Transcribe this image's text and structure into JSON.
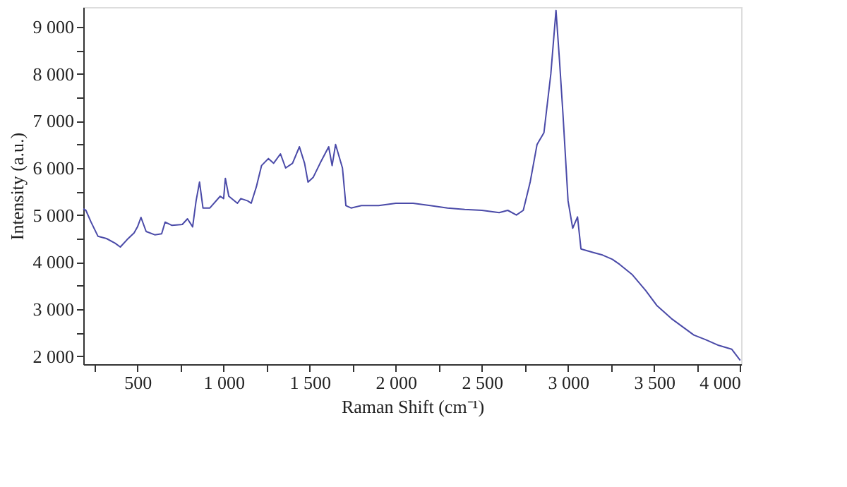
{
  "chart_data": {
    "type": "line",
    "xlabel": "Raman Shift (cm⁻¹)",
    "ylabel": "Intensity (a.u.)",
    "xlim": [
      185,
      4005
    ],
    "ylim": [
      1830,
      9420
    ],
    "xticks": [
      {
        "value": 250,
        "label": null
      },
      500,
      {
        "value": 750,
        "label": null
      },
      {
        "value": 1000,
        "label": "1 000"
      },
      {
        "value": 1250,
        "label": null
      },
      {
        "value": 1500,
        "label": "1 500"
      },
      {
        "value": 1750,
        "label": null
      },
      {
        "value": 2000,
        "label": "2 000"
      },
      {
        "value": 2250,
        "label": null
      },
      {
        "value": 2500,
        "label": "2 500"
      },
      {
        "value": 2750,
        "label": null
      },
      {
        "value": 3000,
        "label": "3 000"
      },
      {
        "value": 3250,
        "label": null
      },
      {
        "value": 3500,
        "label": "3 500"
      },
      {
        "value": 3750,
        "label": null
      },
      {
        "value": 4000,
        "label": "4 000"
      }
    ],
    "yticks": [
      {
        "value": 2000,
        "label": "2 000"
      },
      {
        "value": 2500,
        "label": null
      },
      {
        "value": 3000,
        "label": "3 000"
      },
      {
        "value": 3500,
        "label": null
      },
      {
        "value": 4000,
        "label": "4 000"
      },
      {
        "value": 4500,
        "label": null
      },
      {
        "value": 5000,
        "label": "5 000"
      },
      {
        "value": 5500,
        "label": null
      },
      {
        "value": 6000,
        "label": "6 000"
      },
      {
        "value": 6500,
        "label": null
      },
      {
        "value": 7000,
        "label": "7 000"
      },
      {
        "value": 7500,
        "label": null
      },
      {
        "value": 8000,
        "label": "8 000"
      },
      {
        "value": 8500,
        "label": null
      },
      {
        "value": 9000,
        "label": "9 000"
      }
    ],
    "grid": false,
    "marker": "none",
    "line_style": "solid",
    "series": [
      {
        "color": "#4a4aa8",
        "x": [
          185,
          200,
          230,
          270,
          320,
          370,
          400,
          440,
          480,
          500,
          520,
          550,
          600,
          640,
          660,
          700,
          760,
          790,
          820,
          840,
          860,
          880,
          920,
          980,
          1000,
          1010,
          1030,
          1080,
          1100,
          1140,
          1160,
          1190,
          1220,
          1260,
          1290,
          1330,
          1360,
          1400,
          1440,
          1470,
          1490,
          1520,
          1560,
          1610,
          1630,
          1650,
          1690,
          1710,
          1740,
          1800,
          1900,
          2000,
          2100,
          2200,
          2300,
          2400,
          2500,
          2600,
          2650,
          2700,
          2740,
          2780,
          2820,
          2860,
          2900,
          2930,
          2950,
          2970,
          3000,
          3027,
          3055,
          3075,
          3150,
          3200,
          3257,
          3300,
          3371,
          3450,
          3515,
          3600,
          3730,
          3800,
          3874,
          3950,
          4000
        ],
        "values": [
          5130,
          5100,
          4850,
          4550,
          4500,
          4400,
          4320,
          4480,
          4620,
          4750,
          4950,
          4650,
          4580,
          4600,
          4850,
          4780,
          4800,
          4920,
          4750,
          5300,
          5700,
          5150,
          5150,
          5400,
          5350,
          5780,
          5400,
          5250,
          5350,
          5300,
          5250,
          5600,
          6050,
          6200,
          6100,
          6300,
          6000,
          6100,
          6450,
          6100,
          5700,
          5800,
          6100,
          6450,
          6050,
          6500,
          6000,
          5200,
          5150,
          5200,
          5200,
          5250,
          5250,
          5200,
          5150,
          5120,
          5100,
          5050,
          5100,
          5000,
          5100,
          5700,
          6500,
          6750,
          8000,
          9350,
          8300,
          7170,
          5300,
          4720,
          4960,
          4280,
          4200,
          4150,
          4060,
          3950,
          3740,
          3400,
          3080,
          2800,
          2450,
          2350,
          2230,
          2150,
          1910
        ]
      }
    ]
  }
}
